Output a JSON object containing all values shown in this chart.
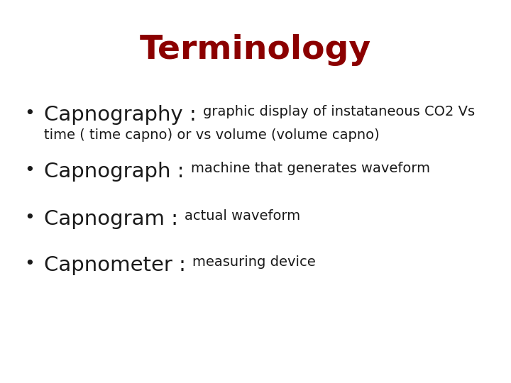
{
  "title": "Terminology",
  "title_color": "#8B0000",
  "title_fontsize": 34,
  "title_fontweight": "bold",
  "background_color": "#ffffff",
  "text_color": "#1a1a1a",
  "bullet_char": "•",
  "bullets": [
    {
      "term": "Capnography",
      "colon": " : ",
      "def_line1": "graphic display of instataneous CO2 Vs",
      "def_line2": "time ( time capno) or vs volume (volume capno)",
      "two_lines": true
    },
    {
      "term": "Capnograph",
      "colon": " : ",
      "def_line1": "machine that generates waveform",
      "def_line2": "",
      "two_lines": false
    },
    {
      "term": "Capnogram",
      "colon": " : ",
      "def_line1": "actual waveform",
      "def_line2": "",
      "two_lines": false
    },
    {
      "term": "Capnometer",
      "colon": " : ",
      "def_line1": "measuring device",
      "def_line2": "",
      "two_lines": false
    }
  ],
  "term_fontsize": 21,
  "def_fontsize": 14,
  "bullet_fontsize": 18,
  "figwidth": 7.2,
  "figheight": 5.4,
  "dpi": 100
}
